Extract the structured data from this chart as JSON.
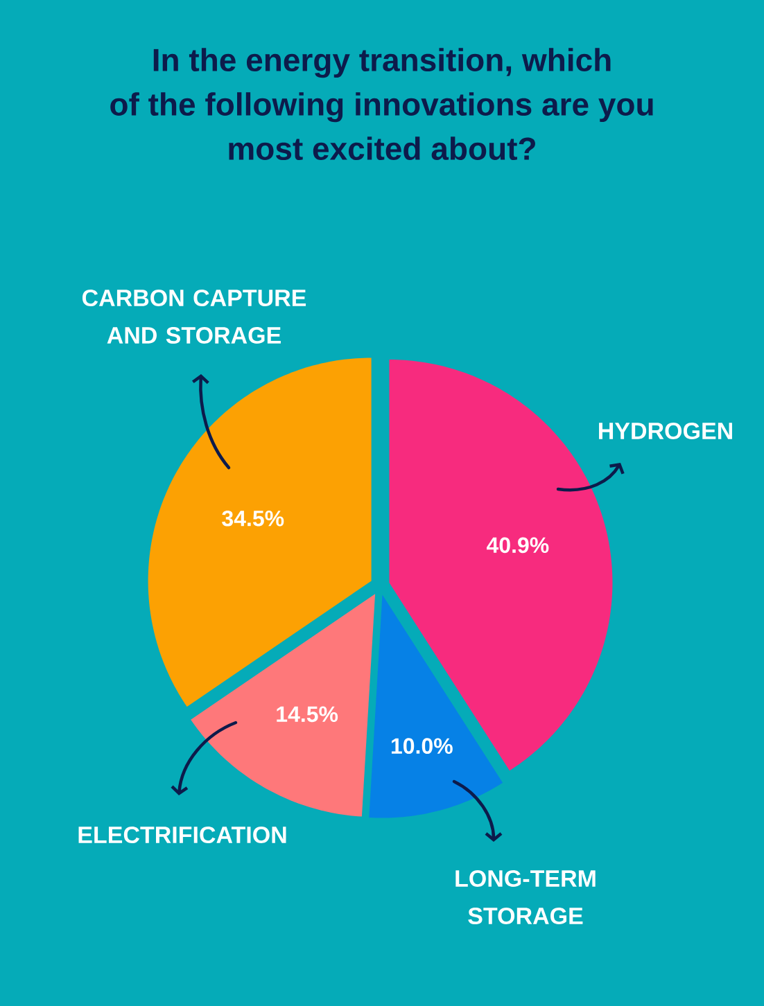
{
  "chart_data": {
    "type": "pie",
    "title": "In the energy transition, which of the following innovations are you most excited about?",
    "categories": [
      "HYDROGEN",
      "LONG-TERM STORAGE",
      "ELECTRIFICATION",
      "CARBON CAPTURE AND STORAGE"
    ],
    "values": [
      40.9,
      10.0,
      14.5,
      34.5
    ],
    "colors": [
      "#f72b7e",
      "#0681e6",
      "#fe787a",
      "#fca103"
    ],
    "value_labels": [
      "40.9%",
      "10.0%",
      "14.5%",
      "34.5%"
    ]
  }
}
